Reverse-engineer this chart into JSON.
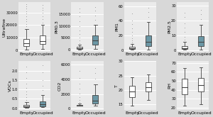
{
  "panels": [
    {
      "label": "Ultrafine",
      "shaded": false,
      "empty": {
        "whisker_low": 500,
        "q1": 3500,
        "median": 5500,
        "q3": 9000,
        "whisker_high": 17000,
        "outliers_high": [
          19000,
          21000,
          23000,
          25000,
          27000,
          29000,
          31000,
          33000,
          35000,
          36500
        ],
        "outliers_low": []
      },
      "occupied": {
        "whisker_low": 1000,
        "q1": 5000,
        "median": 7500,
        "q3": 12000,
        "whisker_high": 20000,
        "outliers_high": [
          22000,
          25000,
          27000,
          30000,
          32000,
          34000,
          36000
        ],
        "outliers_low": []
      },
      "yticks": [
        "0",
        "10000",
        "20000",
        "30000"
      ],
      "ylim": [
        -1000,
        38000
      ]
    },
    {
      "label": "PM0.3",
      "shaded": true,
      "empty": {
        "whisker_low": 100,
        "q1": 400,
        "median": 700,
        "q3": 1100,
        "whisker_high": 2000,
        "outliers_high": [
          2800,
          3800,
          5000,
          6500,
          8000,
          10000,
          12000,
          14000,
          16000,
          17500
        ],
        "outliers_low": []
      },
      "occupied": {
        "whisker_low": 400,
        "q1": 2000,
        "median": 3800,
        "q3": 6000,
        "whisker_high": 10500,
        "outliers_high": [
          12500,
          14500,
          16500,
          18000
        ],
        "outliers_low": []
      },
      "yticks": [
        "0",
        "5000",
        "10000",
        "15000"
      ],
      "ylim": [
        -800,
        20000
      ]
    },
    {
      "label": "PM1",
      "shaded": true,
      "empty": {
        "whisker_low": 0.3,
        "q1": 1.2,
        "median": 2.0,
        "q3": 4.0,
        "whisker_high": 8.0,
        "outliers_high": [
          10,
          13,
          16,
          20,
          25,
          30,
          35,
          40,
          50
        ],
        "outliers_low": []
      },
      "occupied": {
        "whisker_low": 0.8,
        "q1": 5.5,
        "median": 11,
        "q3": 20,
        "whisker_high": 38,
        "outliers_high": [
          45,
          52,
          58
        ],
        "outliers_low": []
      },
      "yticks": [
        "0",
        "20",
        "40",
        "60"
      ],
      "ylim": [
        -2,
        65
      ]
    },
    {
      "label": "PM2.5",
      "shaded": true,
      "empty": {
        "whisker_low": 0.1,
        "q1": 0.6,
        "median": 1.2,
        "q3": 2.5,
        "whisker_high": 5.5,
        "outliers_high": [
          7,
          9,
          12,
          15,
          18,
          22,
          25
        ],
        "outliers_low": []
      },
      "occupied": {
        "whisker_low": 0.3,
        "q1": 2.5,
        "median": 5.5,
        "q3": 9.5,
        "whisker_high": 17,
        "outliers_high": [
          21,
          24,
          27
        ],
        "outliers_low": []
      },
      "yticks": [
        "0",
        "10",
        "20",
        "30"
      ],
      "ylim": [
        -1,
        32
      ]
    },
    {
      "label": "VOCs",
      "shaded": true,
      "empty": {
        "whisker_low": 0.03,
        "q1": 0.08,
        "median": 0.12,
        "q3": 0.18,
        "whisker_high": 0.32,
        "outliers_high": [
          0.45,
          0.6,
          0.75,
          0.9,
          1.1,
          1.3,
          1.6,
          1.9,
          2.2
        ],
        "outliers_low": []
      },
      "occupied": {
        "whisker_low": 0.06,
        "q1": 0.12,
        "median": 0.22,
        "q3": 0.38,
        "whisker_high": 0.7,
        "outliers_high": [
          0.95,
          1.2,
          1.5,
          1.9,
          2.3
        ],
        "outliers_low": []
      },
      "yticks": [
        "0.0",
        "0.5",
        "1.0",
        "1.5",
        "2.0"
      ],
      "ylim": [
        -0.1,
        2.5
      ]
    },
    {
      "label": "CO2",
      "shaded": true,
      "empty": {
        "whisker_low": 380,
        "q1": 430,
        "median": 470,
        "q3": 550,
        "whisker_high": 720,
        "outliers_high": [
          950,
          1200,
          1600,
          2100,
          2700,
          3400,
          4200,
          5200
        ],
        "outliers_low": []
      },
      "occupied": {
        "whisker_low": 450,
        "q1": 680,
        "median": 1100,
        "q3": 1900,
        "whisker_high": 3300,
        "outliers_high": [
          4100,
          4900,
          5600
        ],
        "outliers_low": []
      },
      "yticks": [
        "0",
        "2000",
        "4000",
        "6000"
      ],
      "ylim": [
        -200,
        6500
      ]
    },
    {
      "label": "T",
      "shaded": false,
      "empty": {
        "whisker_low": 14.5,
        "q1": 17.5,
        "median": 19.5,
        "q3": 21.5,
        "whisker_high": 24.5,
        "outliers_high": [],
        "outliers_low": []
      },
      "occupied": {
        "whisker_low": 16.5,
        "q1": 19.5,
        "median": 21.0,
        "q3": 22.8,
        "whisker_high": 25.5,
        "outliers_high": [],
        "outliers_low": []
      },
      "yticks": [
        "15",
        "20",
        "25",
        "30"
      ],
      "ylim": [
        13,
        28
      ]
    },
    {
      "label": "RH",
      "shaded": false,
      "empty": {
        "whisker_low": 22,
        "q1": 35,
        "median": 43,
        "q3": 52,
        "whisker_high": 64,
        "outliers_high": [],
        "outliers_low": []
      },
      "occupied": {
        "whisker_low": 24,
        "q1": 38,
        "median": 45,
        "q3": 53,
        "whisker_high": 65,
        "outliers_high": [],
        "outliers_low": []
      },
      "yticks": [
        "20",
        "30",
        "40",
        "50",
        "60",
        "70"
      ],
      "ylim": [
        17,
        72
      ]
    }
  ],
  "box_width": 0.35,
  "empty_color": "#ffffff",
  "occupied_color_shaded": "#6b97a5",
  "occupied_color_unshaded": "#ffffff",
  "figure_bg": "#d8d8d8",
  "panel_bg": "#ebebeb",
  "grid_color": "#ffffff",
  "line_color": "#444444",
  "xlabel_empty": "Empty",
  "xlabel_occupied": "Occupied",
  "label_fontsize": 4.5,
  "tick_fontsize": 3.8
}
